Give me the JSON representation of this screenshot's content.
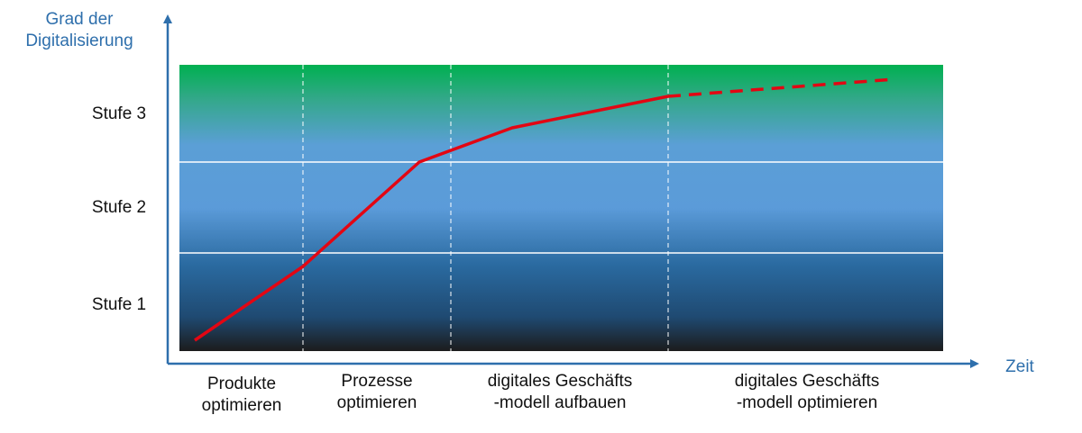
{
  "y_axis_title": [
    "Grad der",
    "Digitalisierung"
  ],
  "x_axis_title": "Zeit",
  "levels": [
    "Stufe 3",
    "Stufe 2",
    "Stufe 1"
  ],
  "phases": [
    [
      "Produkte",
      "optimieren"
    ],
    [
      "Prozesse",
      "optimieren"
    ],
    [
      "digitales Geschäfts",
      "-modell aufbauen"
    ],
    [
      "digitales Geschäfts",
      "-modell optimieren"
    ]
  ],
  "colors": {
    "axis": "#2e6fac",
    "curve": "#e30613",
    "band_top": "#00b050",
    "band_mid": "#5b9bd5",
    "band_bottom": "#1a1a1a"
  },
  "curve": {
    "solid": true,
    "projection": "dashed"
  }
}
